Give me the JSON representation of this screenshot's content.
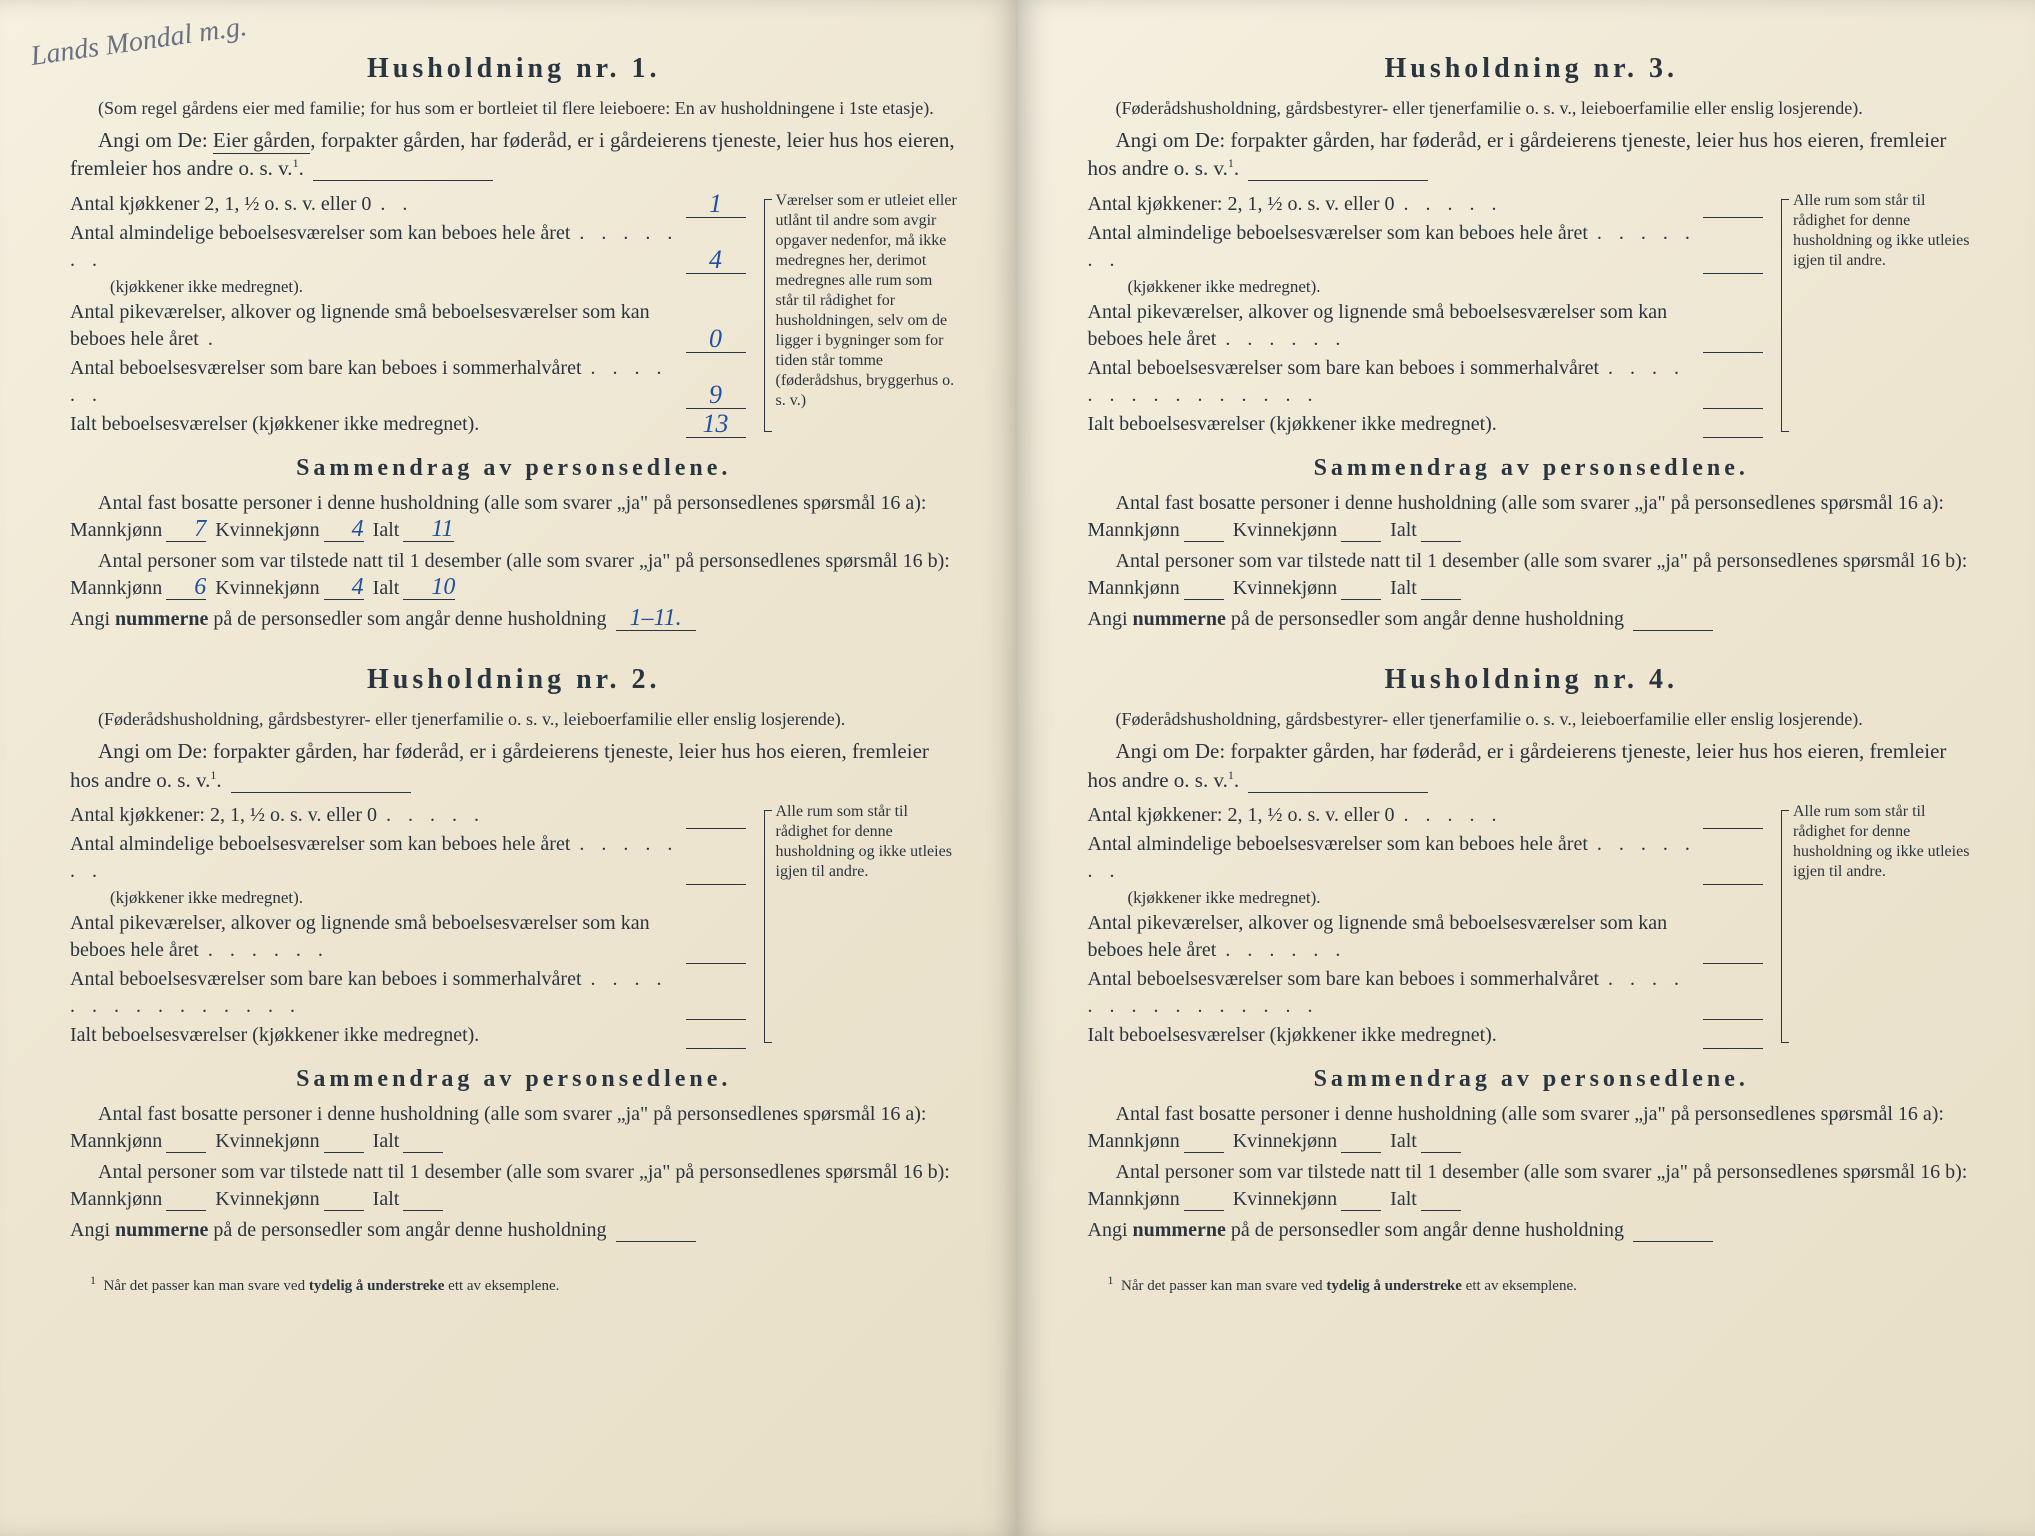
{
  "handwritten_top": "Lands\nMondal m.g.",
  "households": [
    {
      "title": "Husholdning nr. 1.",
      "desc": "(Som regel gårdens eier med familie; for hus som er bortleiet til flere leieboere: En av husholdningene i 1ste etasje).",
      "angi_prefix": "Angi om De: ",
      "angi_underlined": "Eier gården",
      "angi_rest": ", forpakter gården, har føderåd, er i gårdeierens tjeneste, leier hus hos eieren, fremleier hos andre o. s. v.",
      "sup": "1",
      "rooms": [
        {
          "label": "Antal kjøkkener 2, 1, ½ o. s. v. eller 0",
          "dots": ". .",
          "value": "1"
        },
        {
          "label": "Antal almindelige beboelsesværelser som kan beboes hele året",
          "sublabel": "(kjøkkener ikke medregnet).",
          "dots": ". . . . . . .",
          "value": "4"
        },
        {
          "label": "Antal pikeværelser, alkover og lignende små beboelsesværelser som kan beboes hele året",
          "dots": ".",
          "value": "0"
        },
        {
          "label": "Antal beboelsesværelser som bare kan beboes i sommerhalvåret",
          "dots": ". . . . . .",
          "value": "9"
        },
        {
          "label": "Ialt beboelsesværelser (kjøkkener ikke medregnet).",
          "dots": "",
          "value": "13"
        }
      ],
      "side_note": "Værelser som er utleiet eller utlånt til andre som avgir opgaver nedenfor, må ikke medregnes her, derimot medregnes alle rum som står til rådighet for husholdningen, selv om de ligger i bygninger som for tiden står tomme (føderådshus, bryggerhus o. s. v.)",
      "summary_title": "Sammendrag av personsedlene.",
      "s16a_pre": "Antal fast bosatte personer i denne husholdning (alle som svarer „ja\" på personsedlenes spørsmål 16 a): Mannkjønn",
      "s16a_m": "7",
      "s16a_k": "4",
      "s16a_t": "11",
      "s16b_pre": "Antal personer som var tilstede natt til 1 desember (alle som svarer „ja\" på personsedlenes spørsmål 16 b): Mannkjønn",
      "s16b_m": "6",
      "s16b_k": "4",
      "s16b_t": "10",
      "nummer_pre": "Angi ",
      "nummer_bold": "nummerne",
      "nummer_rest": " på de personsedler som angår denne husholdning",
      "nummer_val": "1–11."
    },
    {
      "title": "Husholdning nr. 2.",
      "desc": "(Føderådshusholdning, gårdsbestyrer- eller tjenerfamilie o. s. v., leieboerfamilie eller enslig losjerende).",
      "angi_prefix": "Angi om De:  ",
      "angi_rest": "forpakter gården, har føderåd, er i gårdeierens tjeneste, leier hus hos eieren, fremleier hos andre o. s. v.",
      "sup": "1",
      "rooms": [
        {
          "label": "Antal kjøkkener: 2, 1, ½ o. s. v. eller 0",
          "dots": ". . . . .",
          "value": ""
        },
        {
          "label": "Antal almindelige beboelsesværelser som kan beboes hele året",
          "sublabel": "(kjøkkener ikke medregnet).",
          "dots": ". . . . . . .",
          "value": ""
        },
        {
          "label": "Antal pikeværelser, alkover og lignende små beboelsesværelser som kan beboes hele året",
          "dots": ". . . . . .",
          "value": ""
        },
        {
          "label": "Antal beboelsesværelser som bare kan beboes i sommerhalvåret",
          "dots": ". . . . . . . . . . . . . . .",
          "value": ""
        },
        {
          "label": "Ialt beboelsesværelser (kjøkkener ikke medregnet).",
          "dots": "",
          "value": ""
        }
      ],
      "side_note": "Alle rum som står til rådighet for denne husholdning og ikke utleies igjen til andre.",
      "summary_title": "Sammendrag av personsedlene.",
      "s16a_pre": "Antal fast bosatte personer i denne husholdning (alle som svarer „ja\" på personsedlenes spørsmål 16 a): Mannkjønn",
      "s16a_m": "",
      "s16a_k": "",
      "s16a_t": "",
      "s16b_pre": "Antal personer som var tilstede natt til 1 desember (alle som svarer „ja\" på personsedlenes spørsmål 16 b): Mannkjønn",
      "s16b_m": "",
      "s16b_k": "",
      "s16b_t": "",
      "nummer_pre": "Angi ",
      "nummer_bold": "nummerne",
      "nummer_rest": " på de personsedler som angår denne husholdning",
      "nummer_val": ""
    },
    {
      "title": "Husholdning nr. 3.",
      "desc": "(Føderådshusholdning, gårdsbestyrer- eller tjenerfamilie o. s. v., leieboerfamilie eller enslig losjerende).",
      "angi_prefix": "Angi om De:  ",
      "angi_rest": "forpakter gården, har føderåd, er i gårdeierens tjeneste, leier hus hos eieren, fremleier hos andre o. s. v.",
      "sup": "1",
      "rooms": [
        {
          "label": "Antal kjøkkener: 2, 1, ½ o. s. v. eller 0",
          "dots": ". . . . .",
          "value": ""
        },
        {
          "label": "Antal almindelige beboelsesværelser som kan beboes hele året",
          "sublabel": "(kjøkkener ikke medregnet).",
          "dots": ". . . . . . .",
          "value": ""
        },
        {
          "label": "Antal pikeværelser, alkover og lignende små beboelsesværelser som kan beboes hele året",
          "dots": ". . . . . .",
          "value": ""
        },
        {
          "label": "Antal beboelsesværelser som bare kan beboes i sommerhalvåret",
          "dots": ". . . . . . . . . . . . . . .",
          "value": ""
        },
        {
          "label": "Ialt beboelsesværelser (kjøkkener ikke medregnet).",
          "dots": "",
          "value": ""
        }
      ],
      "side_note": "Alle rum som står til rådighet for denne husholdning og ikke utleies igjen til andre.",
      "summary_title": "Sammendrag av personsedlene.",
      "s16a_pre": "Antal fast bosatte personer i denne husholdning (alle som svarer „ja\" på personsedlenes spørsmål 16 a): Mannkjønn",
      "s16a_m": "",
      "s16a_k": "",
      "s16a_t": "",
      "s16b_pre": "Antal personer som var tilstede natt til 1 desember (alle som svarer „ja\" på personsedlenes spørsmål 16 b): Mannkjønn",
      "s16b_m": "",
      "s16b_k": "",
      "s16b_t": "",
      "nummer_pre": "Angi ",
      "nummer_bold": "nummerne",
      "nummer_rest": " på de personsedler som angår denne husholdning",
      "nummer_val": ""
    },
    {
      "title": "Husholdning nr. 4.",
      "desc": "(Føderådshusholdning, gårdsbestyrer- eller tjenerfamilie o. s. v., leieboerfamilie eller enslig losjerende).",
      "angi_prefix": "Angi om De:  ",
      "angi_rest": "forpakter gården, har føderåd, er i gårdeierens tjeneste, leier hus hos eieren, fremleier hos andre o. s. v.",
      "sup": "1",
      "rooms": [
        {
          "label": "Antal kjøkkener: 2, 1, ½ o. s. v. eller 0",
          "dots": ". . . . .",
          "value": ""
        },
        {
          "label": "Antal almindelige beboelsesværelser som kan beboes hele året",
          "sublabel": "(kjøkkener ikke medregnet).",
          "dots": ". . . . . . .",
          "value": ""
        },
        {
          "label": "Antal pikeværelser, alkover og lignende små beboelsesværelser som kan beboes hele året",
          "dots": ". . . . . .",
          "value": ""
        },
        {
          "label": "Antal beboelsesværelser som bare kan beboes i sommerhalvåret",
          "dots": ". . . . . . . . . . . . . . .",
          "value": ""
        },
        {
          "label": "Ialt beboelsesværelser (kjøkkener ikke medregnet).",
          "dots": "",
          "value": ""
        }
      ],
      "side_note": "Alle rum som står til rådighet for denne husholdning og ikke utleies igjen til andre.",
      "summary_title": "Sammendrag av personsedlene.",
      "s16a_pre": "Antal fast bosatte personer i denne husholdning (alle som svarer „ja\" på personsedlenes spørsmål 16 a): Mannkjønn",
      "s16a_m": "",
      "s16a_k": "",
      "s16a_t": "",
      "s16b_pre": "Antal personer som var tilstede natt til 1 desember (alle som svarer „ja\" på personsedlenes spørsmål 16 b): Mannkjønn",
      "s16b_m": "",
      "s16b_k": "",
      "s16b_t": "",
      "nummer_pre": "Angi ",
      "nummer_bold": "nummerne",
      "nummer_rest": " på de personsedler som angår denne husholdning",
      "nummer_val": ""
    }
  ],
  "kvinnekjonn_label": "Kvinnekjønn",
  "ialt_label": "Ialt",
  "footnote_marker": "1",
  "footnote_text": "Når det passer kan man svare ved ",
  "footnote_bold": "tydelig å understreke",
  "footnote_rest": " ett av eksemplene.",
  "colors": {
    "paper": "#ede5d0",
    "text": "#2a3540",
    "handwriting": "#2050a0"
  }
}
